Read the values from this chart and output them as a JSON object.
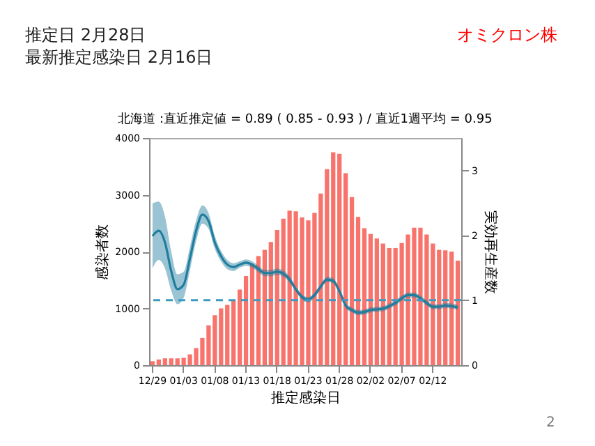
{
  "chart_data": {
    "type": "bar",
    "title": "北海道 :直近推定値 = 0.89 ( 0.85 - 0.93 ) / 直近1週平均 = 0.95",
    "annotations": [
      "推定日  2月28日",
      "最新推定感染日  2月16日",
      "オミクロン株",
      "2"
    ],
    "xlabel": "推定感染日",
    "ylabel": "感染者数",
    "y2label": "実効再生産数",
    "categories": [
      "12/29",
      null,
      null,
      null,
      null,
      "01/03",
      null,
      null,
      null,
      null,
      "01/08",
      null,
      null,
      null,
      null,
      "01/13",
      null,
      null,
      null,
      null,
      "01/18",
      null,
      null,
      null,
      null,
      "01/23",
      null,
      null,
      null,
      null,
      "01/28",
      null,
      null,
      null,
      null,
      "02/02",
      null,
      null,
      null,
      null,
      "02/07",
      null,
      null,
      null,
      null,
      "02/12",
      null,
      null,
      null,
      null
    ],
    "series": [
      {
        "color": "#f8736b",
        "values": [
          70,
          100,
          120,
          120,
          120,
          130,
          190,
          300,
          480,
          700,
          880,
          1000,
          1060,
          1150,
          1330,
          1570,
          1770,
          1920,
          2030,
          2170,
          2380,
          2580,
          2720,
          2710,
          2600,
          2550,
          2680,
          3020,
          3450,
          3750,
          3720,
          3380,
          2960,
          2610,
          2410,
          2310,
          2230,
          2140,
          2060,
          2060,
          2150,
          2300,
          2420,
          2420,
          2300,
          2140,
          2030,
          2020,
          2000,
          1840
        ]
      },
      {
        "type": "line",
        "axis": "y2",
        "color": "#1f7d9e",
        "values": [
          1.99,
          2.07,
          1.89,
          1.45,
          1.17,
          1.24,
          1.64,
          2.07,
          2.32,
          2.22,
          1.89,
          1.68,
          1.55,
          1.51,
          1.55,
          1.58,
          1.55,
          1.48,
          1.42,
          1.42,
          1.44,
          1.41,
          1.32,
          1.17,
          1.05,
          1.01,
          1.08,
          1.21,
          1.32,
          1.3,
          1.14,
          0.92,
          0.85,
          0.81,
          0.82,
          0.85,
          0.86,
          0.87,
          0.91,
          0.96,
          1.03,
          1.08,
          1.08,
          1.03,
          0.96,
          0.9,
          0.9,
          0.92,
          0.91,
          0.89
        ],
        "lower": [
          1.49,
          1.62,
          1.49,
          1.15,
          0.94,
          1.04,
          1.46,
          1.91,
          2.18,
          2.1,
          1.79,
          1.6,
          1.48,
          1.45,
          1.5,
          1.53,
          1.5,
          1.43,
          1.37,
          1.37,
          1.39,
          1.36,
          1.27,
          1.13,
          1.01,
          0.97,
          1.04,
          1.17,
          1.28,
          1.26,
          1.1,
          0.88,
          0.81,
          0.77,
          0.78,
          0.81,
          0.82,
          0.83,
          0.87,
          0.92,
          0.99,
          1.04,
          1.04,
          0.99,
          0.92,
          0.86,
          0.86,
          0.88,
          0.87,
          0.85
        ],
        "upper": [
          2.49,
          2.52,
          2.29,
          1.75,
          1.4,
          1.44,
          1.82,
          2.23,
          2.46,
          2.34,
          1.99,
          1.76,
          1.62,
          1.57,
          1.6,
          1.63,
          1.6,
          1.53,
          1.47,
          1.47,
          1.49,
          1.46,
          1.37,
          1.21,
          1.09,
          1.05,
          1.12,
          1.25,
          1.36,
          1.34,
          1.18,
          0.96,
          0.89,
          0.85,
          0.86,
          0.89,
          0.9,
          0.91,
          0.95,
          1.0,
          1.07,
          1.12,
          1.12,
          1.07,
          1.0,
          0.94,
          0.94,
          0.96,
          0.95,
          0.93
        ]
      }
    ],
    "ylim": [
      0,
      4000
    ],
    "yticks": [
      0,
      1000,
      2000,
      3000,
      4000
    ],
    "y2lim": [
      0,
      3.5
    ],
    "y2ticks": [
      0,
      1,
      2,
      3
    ],
    "ref_lines": [
      {
        "axis": "y2",
        "value": 1,
        "color": "#3a9ac0",
        "line_style": "dashed"
      }
    ],
    "grid": false,
    "marker": "none",
    "line_style": "solid"
  }
}
